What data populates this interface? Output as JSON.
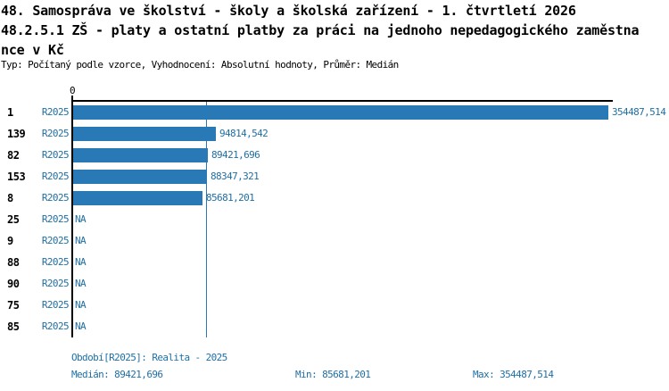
{
  "header": {
    "title_line1": "48. Samospráva ve školství - školy a školská zařízení - 1. čtvrtletí 2026",
    "title_line2": "48.2.5.1 ZŠ - platy a ostatní platby za práci na jednoho nepedagogického zaměstna",
    "title_line3": "nce v Kč",
    "subtitle": "Typ: Počítaný podle vzorce, Vyhodnocení: Absolutní hodnoty, Průměr: Medián"
  },
  "chart_data": {
    "type": "bar",
    "orientation": "horizontal",
    "axis_zero_label": "0",
    "series_name": "R2025",
    "categories": [
      "1",
      "139",
      "82",
      "153",
      "8",
      "25",
      "9",
      "88",
      "90",
      "75",
      "85"
    ],
    "values": [
      354487.514,
      94814.542,
      89421.696,
      88347.321,
      85681.201,
      null,
      null,
      null,
      null,
      null,
      null
    ],
    "value_labels": [
      "354487,514",
      "94814,542",
      "89421,696",
      "88347,321",
      "85681,201",
      "NA",
      "NA",
      "NA",
      "NA",
      "NA",
      "NA"
    ],
    "xlim": [
      0,
      354487.514
    ],
    "median_value": 89421.696,
    "grid": "single-median-line",
    "legend_position": "none"
  },
  "footer": {
    "period": "Období[R2025]: Realita - 2025",
    "median": "Medián: 89421,696",
    "min": "Min: 85681,201",
    "max": "Max: 354487,514"
  },
  "colors": {
    "bar": "#2879b5",
    "text_blue": "#1d6fa5",
    "axis": "#000000",
    "background": "#ffffff"
  }
}
